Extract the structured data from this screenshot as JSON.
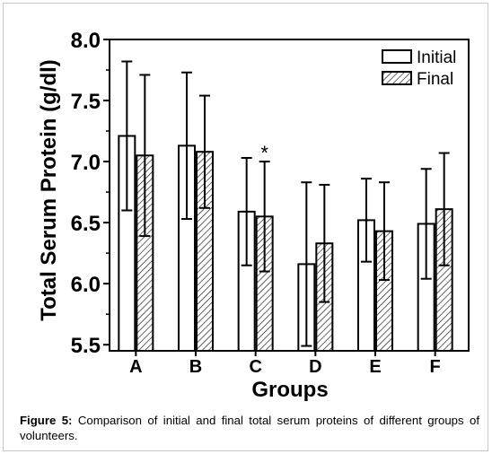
{
  "chart_data": {
    "type": "bar",
    "xlabel": "Groups",
    "ylabel": "Total Serum Protein (g/dl)",
    "ylim": [
      5.45,
      8.0
    ],
    "yticks": [
      "5.5",
      "6.0",
      "6.5",
      "7.0",
      "7.5",
      "8.0"
    ],
    "categories": [
      "A",
      "B",
      "C",
      "D",
      "E",
      "F"
    ],
    "series": [
      {
        "name": "Initial",
        "values": [
          7.21,
          7.13,
          6.59,
          6.16,
          6.52,
          6.49
        ],
        "errors": [
          0.61,
          0.6,
          0.44,
          0.67,
          0.34,
          0.45
        ]
      },
      {
        "name": "Final",
        "values": [
          7.05,
          7.08,
          6.55,
          6.33,
          6.43,
          6.61
        ],
        "errors": [
          0.66,
          0.46,
          0.45,
          0.48,
          0.4,
          0.46
        ]
      }
    ],
    "annotations": [
      {
        "category": "C",
        "series": "Final",
        "text": "*"
      }
    ],
    "legend_position": "top-right",
    "grid": false
  },
  "caption": {
    "label": "Figure 5:",
    "text": "Comparison of initial and final total serum proteins of different groups of volunteers."
  }
}
